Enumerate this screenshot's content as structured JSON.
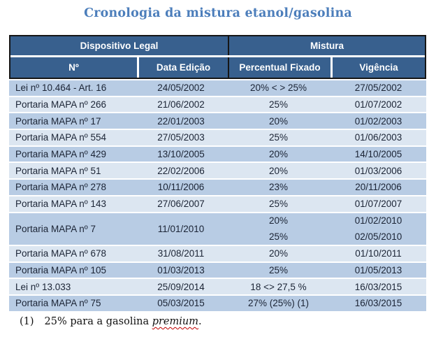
{
  "title": "Cronologia da mistura etanol/gasolina",
  "colors": {
    "header_bg": "#38608e",
    "header_text": "#ffffff",
    "row_medium": "#b8cce4",
    "row_light": "#dce6f1",
    "title_text": "#4c7ebb",
    "outer_border": "#161616",
    "spellcheck_underline": "#c00000"
  },
  "table": {
    "group_headers": [
      "Dispositivo Legal",
      "Mistura"
    ],
    "column_headers": [
      "Nº",
      "Data Edição",
      "Percentual Fixado",
      "Vigência"
    ],
    "rows": [
      {
        "no": "Lei nº 10.464 - Art. 16",
        "data_edicao": "24/05/2002",
        "percentual": "20% < > 25%",
        "vigencia": "27/05/2002"
      },
      {
        "no": "Portaria MAPA nº 266",
        "data_edicao": "21/06/2002",
        "percentual": "25%",
        "vigencia": "01/07/2002"
      },
      {
        "no": "Portaria MAPA nº 17",
        "data_edicao": "22/01/2003",
        "percentual": "20%",
        "vigencia": "01/02/2003"
      },
      {
        "no": "Portaria MAPA nº 554",
        "data_edicao": "27/05/2003",
        "percentual": "25%",
        "vigencia": "01/06/2003"
      },
      {
        "no": "Portaria MAPA nº 429",
        "data_edicao": "13/10/2005",
        "percentual": "20%",
        "vigencia": "14/10/2005"
      },
      {
        "no": "Portaria MAPA nº 51",
        "data_edicao": "22/02/2006",
        "percentual": "20%",
        "vigencia": "01/03/2006"
      },
      {
        "no": "Portaria MAPA nº 278",
        "data_edicao": "10/11/2006",
        "percentual": "23%",
        "vigencia": "20/11/2006"
      },
      {
        "no": "Portaria MAPA nº 143",
        "data_edicao": "27/06/2007",
        "percentual": "25%",
        "vigencia": "01/07/2007"
      },
      {
        "no": "Portaria MAPA nº 7",
        "data_edicao": "11/01/2010",
        "percentual": [
          "20%",
          "25%"
        ],
        "vigencia": [
          "01/02/2010",
          "02/05/2010"
        ]
      },
      {
        "no": "Portaria MAPA nº 678",
        "data_edicao": "31/08/2011",
        "percentual": "20%",
        "vigencia": "01/10/2011"
      },
      {
        "no": "Portaria MAPA nº 105",
        "data_edicao": "01/03/2013",
        "percentual": "25%",
        "vigencia": "01/05/2013"
      },
      {
        "no": "Lei nº 13.033",
        "data_edicao": "25/09/2014",
        "percentual": "18 <> 27,5 %",
        "vigencia": "16/03/2015"
      },
      {
        "no": "Portaria MAPA nº 75",
        "data_edicao": "05/03/2015",
        "percentual": "27% (25%) (1)",
        "vigencia": "16/03/2015"
      }
    ]
  },
  "footnote": {
    "marker": "(1)",
    "text_before": "25% para a gasolina ",
    "highlight": "premium",
    "text_after": "."
  }
}
